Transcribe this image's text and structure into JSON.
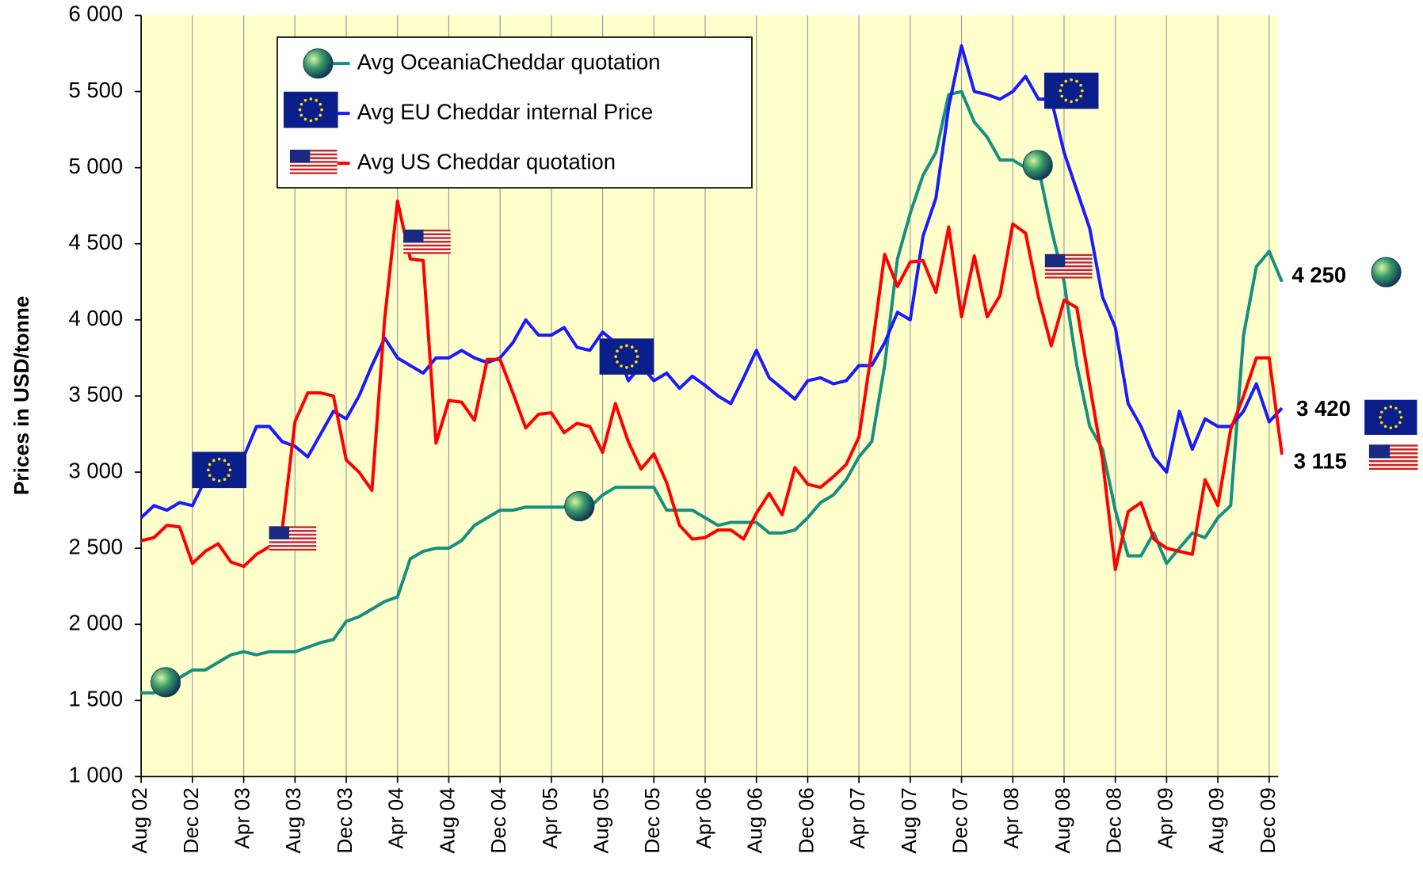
{
  "chart_data": {
    "type": "line",
    "y_axis_label": "Prices in USD/tonne",
    "categories": [
      "Aug 02",
      null,
      null,
      null,
      "Dec 02",
      null,
      null,
      null,
      "Apr 03",
      null,
      null,
      null,
      "Aug 03",
      null,
      null,
      null,
      "Dec 03",
      null,
      null,
      null,
      "Apr 04",
      null,
      null,
      null,
      "Aug 04",
      null,
      null,
      null,
      "Dec 04",
      null,
      null,
      null,
      "Apr 05",
      null,
      null,
      null,
      "Aug 05",
      null,
      null,
      null,
      "Dec 05",
      null,
      null,
      null,
      "Apr 06",
      null,
      null,
      null,
      "Aug 06",
      null,
      null,
      null,
      "Dec 06",
      null,
      null,
      null,
      "Apr 07",
      null,
      null,
      null,
      "Aug 07",
      null,
      null,
      null,
      "Dec 07",
      null,
      null,
      null,
      "Apr 08",
      null,
      null,
      null,
      "Aug 08",
      null,
      null,
      null,
      "Dec 08",
      null,
      null,
      null,
      "Apr 09",
      null,
      null,
      null,
      "Aug 09",
      null,
      null,
      null,
      "Dec 09",
      null
    ],
    "ylim": [
      1000,
      6000
    ],
    "yticks": [
      {
        "value": 1000,
        "label": "1 000"
      },
      {
        "value": 1500,
        "label": "1 500"
      },
      {
        "value": 2000,
        "label": "2 000"
      },
      {
        "value": 2500,
        "label": "2 500"
      },
      {
        "value": 3000,
        "label": "3 000"
      },
      {
        "value": 3500,
        "label": "3 500"
      },
      {
        "value": 4000,
        "label": "4 000"
      },
      {
        "value": 4500,
        "label": "4 500"
      },
      {
        "value": 5000,
        "label": "5 000"
      },
      {
        "value": 5500,
        "label": "5 500"
      },
      {
        "value": 6000,
        "label": "6 000"
      }
    ],
    "background": "#ffffcc",
    "series": [
      {
        "name": "Avg OceaniaCheddar quotation",
        "color": "#159080",
        "end_label": "4 250",
        "values": [
          1550,
          1550,
          1600,
          1650,
          1700,
          1700,
          1750,
          1800,
          1820,
          1800,
          1820,
          1820,
          1820,
          1850,
          1880,
          1900,
          2020,
          2050,
          2100,
          2150,
          2180,
          2430,
          2480,
          2500,
          2500,
          2550,
          2650,
          2700,
          2750,
          2750,
          2770,
          2770,
          2770,
          2770,
          2830,
          2770,
          2850,
          2900,
          2900,
          2900,
          2900,
          2750,
          2750,
          2750,
          2700,
          2650,
          2670,
          2670,
          2670,
          2600,
          2600,
          2620,
          2700,
          2800,
          2850,
          2950,
          3100,
          3200,
          3700,
          4400,
          4700,
          4950,
          5100,
          5480,
          5500,
          5300,
          5200,
          5050,
          5050,
          5000,
          5000,
          4600,
          4250,
          3700,
          3300,
          3150,
          2750,
          2450,
          2450,
          2600,
          2400,
          2500,
          2600,
          2570,
          2700,
          2780,
          3900,
          4350,
          4450,
          4250
        ]
      },
      {
        "name": "Avg EU Cheddar internal Price",
        "color": "#1a1aff",
        "end_label": "3 420",
        "values": [
          2700,
          2780,
          2750,
          2800,
          2780,
          2950,
          3050,
          3100,
          3100,
          3300,
          3300,
          3200,
          3170,
          3100,
          3250,
          3400,
          3350,
          3500,
          3700,
          3880,
          3750,
          3700,
          3650,
          3750,
          3750,
          3800,
          3750,
          3720,
          3750,
          3850,
          4000,
          3900,
          3900,
          3950,
          3820,
          3800,
          3920,
          3850,
          3600,
          3700,
          3600,
          3650,
          3550,
          3630,
          3570,
          3500,
          3450,
          3620,
          3800,
          3620,
          3550,
          3480,
          3600,
          3620,
          3580,
          3600,
          3700,
          3700,
          3850,
          4050,
          4000,
          4550,
          4800,
          5400,
          5800,
          5500,
          5480,
          5450,
          5500,
          5600,
          5450,
          5450,
          5100,
          4850,
          4600,
          4150,
          3950,
          3450,
          3300,
          3100,
          3000,
          3400,
          3150,
          3350,
          3300,
          3300,
          3400,
          3580,
          3330,
          3420
        ]
      },
      {
        "name": "Avg US Cheddar quotation",
        "color": "#ff0000",
        "end_label": "3 115",
        "values": [
          2550,
          2570,
          2650,
          2640,
          2400,
          2480,
          2530,
          2410,
          2380,
          2460,
          2510,
          2620,
          3330,
          3520,
          3520,
          3500,
          3080,
          3000,
          2880,
          4010,
          4780,
          4400,
          4390,
          3190,
          3470,
          3460,
          3340,
          3740,
          3740,
          3520,
          3290,
          3380,
          3390,
          3260,
          3320,
          3300,
          3130,
          3450,
          3200,
          3020,
          3120,
          2930,
          2650,
          2560,
          2570,
          2620,
          2620,
          2560,
          2730,
          2860,
          2720,
          3030,
          2920,
          2900,
          2970,
          3050,
          3230,
          3800,
          4430,
          4220,
          4380,
          4390,
          4180,
          4610,
          4020,
          4420,
          4020,
          4160,
          4630,
          4570,
          4150,
          3830,
          4130,
          4080,
          3570,
          3080,
          2360,
          2740,
          2800,
          2560,
          2500,
          2480,
          2460,
          2950,
          2780,
          3280,
          3500,
          3750,
          3750,
          3115
        ]
      }
    ]
  }
}
